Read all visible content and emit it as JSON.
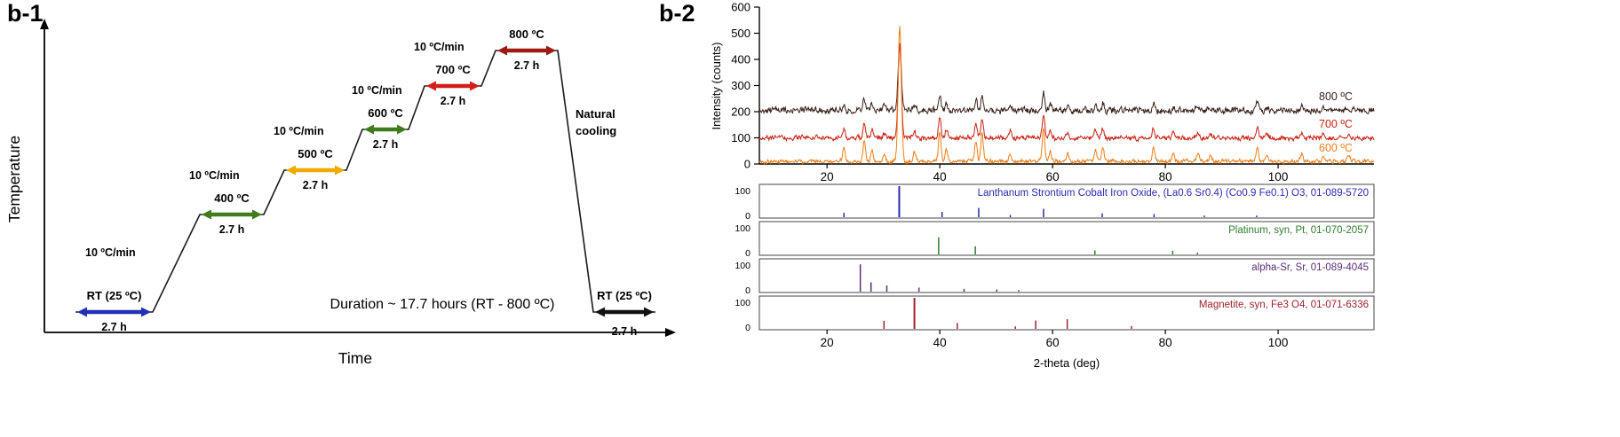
{
  "figure": {
    "b1_label": "b-1",
    "b2_label": "b-2"
  },
  "chart_data": [
    {
      "id": "temperature-profile",
      "type": "line",
      "xlabel": "Time",
      "ylabel": "Temperature",
      "ramp_rate_label": "10 ºC/min",
      "ramp_rate_c_per_min": 10,
      "hold_hours": 2.7,
      "duration_label": "Duration ~ 17.7 hours (RT - 800 ºC)",
      "natural_cooling_lines": [
        "Natural",
        "cooling"
      ],
      "steps": [
        {
          "label": "RT (25 ºC)",
          "temp_c": 25,
          "hold": "2.7 h",
          "arrow_color": "#2130b4"
        },
        {
          "label": "400 ºC",
          "temp_c": 400,
          "hold": "2.7 h",
          "arrow_color": "#3e7c1e"
        },
        {
          "label": "500 ºC",
          "temp_c": 500,
          "hold": "2.7 h",
          "arrow_color": "#f2a900"
        },
        {
          "label": "600 ºC",
          "temp_c": 600,
          "hold": "2.7 h",
          "arrow_color": "#3e7c1e"
        },
        {
          "label": "700 ºC",
          "temp_c": 700,
          "hold": "2.7 h",
          "arrow_color": "#d21f1b"
        },
        {
          "label": "800 ºC",
          "temp_c": 800,
          "hold": "2.7 h",
          "arrow_color": "#9e1a12"
        },
        {
          "label": "RT (25 ºC)",
          "temp_c": 25,
          "hold": "2.7 h",
          "arrow_color": "#121212"
        }
      ]
    },
    {
      "id": "xrd-patterns",
      "type": "line",
      "xlabel": "2-theta (deg)",
      "ylabel": "Intensity (counts)",
      "xlim": [
        8,
        117
      ],
      "ylim": [
        0,
        600
      ],
      "x_ticks": [
        20,
        40,
        60,
        80,
        100
      ],
      "y_ticks": [
        0,
        100,
        200,
        300,
        400,
        500,
        600
      ],
      "panel_y_ticks": [
        100,
        0
      ],
      "peaks": [
        [
          23.0,
          10
        ],
        [
          26.6,
          15
        ],
        [
          28.0,
          8
        ],
        [
          30.2,
          5
        ],
        [
          32.9,
          100
        ],
        [
          35.5,
          7
        ],
        [
          40.0,
          22
        ],
        [
          41.2,
          9
        ],
        [
          46.4,
          15
        ],
        [
          47.5,
          21
        ],
        [
          52.5,
          6
        ],
        [
          58.4,
          25
        ],
        [
          59.6,
          7
        ],
        [
          62.7,
          6
        ],
        [
          67.6,
          8
        ],
        [
          68.9,
          10
        ],
        [
          77.9,
          11
        ],
        [
          81.4,
          6
        ],
        [
          85.8,
          6
        ],
        [
          88.0,
          4
        ],
        [
          96.3,
          11
        ],
        [
          98.0,
          5
        ],
        [
          104.2,
          6
        ],
        [
          108.0,
          4
        ],
        [
          112.5,
          4
        ]
      ],
      "series": [
        {
          "name": "600 ºC",
          "color": "#ee7d15",
          "baseline": 10,
          "peak_scale": 5.2,
          "noise": 6,
          "seed": 101
        },
        {
          "name": "700 ºC",
          "color": "#c92012",
          "baseline": 100,
          "peak_scale": 3.6,
          "noise": 7,
          "seed": 202
        },
        {
          "name": "800 ºC",
          "color": "#3a211a",
          "baseline": 205,
          "peak_scale": 2.6,
          "noise": 9,
          "seed": 303
        }
      ],
      "reference_panels": [
        {
          "label": "Lanthanum Strontium Cobalt Iron Oxide, (La0.6 Sr0.4) (Co0.9 Fe0.1) O3, 01-089-5720",
          "color": "#2a2ab2",
          "sticks": [
            [
              23.0,
              14
            ],
            [
              32.8,
              100
            ],
            [
              40.4,
              17
            ],
            [
              46.9,
              30
            ],
            [
              52.5,
              7
            ],
            [
              58.4,
              27
            ],
            [
              68.8,
              12
            ],
            [
              78.0,
              10
            ],
            [
              86.9,
              5
            ],
            [
              96.2,
              5
            ]
          ]
        },
        {
          "label": "Platinum, syn, Pt, 01-070-2057",
          "color": "#2e7d2e",
          "sticks": [
            [
              39.8,
              55
            ],
            [
              46.3,
              26
            ],
            [
              67.5,
              13
            ],
            [
              81.3,
              12
            ],
            [
              85.7,
              6
            ]
          ]
        },
        {
          "label": "alpha-Sr, Sr, 01-089-4045",
          "color": "#5c2d74",
          "sticks": [
            [
              25.9,
              88
            ],
            [
              27.8,
              30
            ],
            [
              30.6,
              20
            ],
            [
              36.3,
              13
            ],
            [
              44.3,
              9
            ],
            [
              50.1,
              7
            ],
            [
              54.0,
              5
            ]
          ]
        },
        {
          "label": "Magnetite, syn, Fe3 O4, 01-071-6336",
          "color": "#a0212e",
          "sticks": [
            [
              30.1,
              26
            ],
            [
              35.5,
              100
            ],
            [
              43.1,
              19
            ],
            [
              53.4,
              8
            ],
            [
              57.0,
              27
            ],
            [
              62.6,
              31
            ],
            [
              74.0,
              9
            ]
          ]
        }
      ]
    }
  ]
}
